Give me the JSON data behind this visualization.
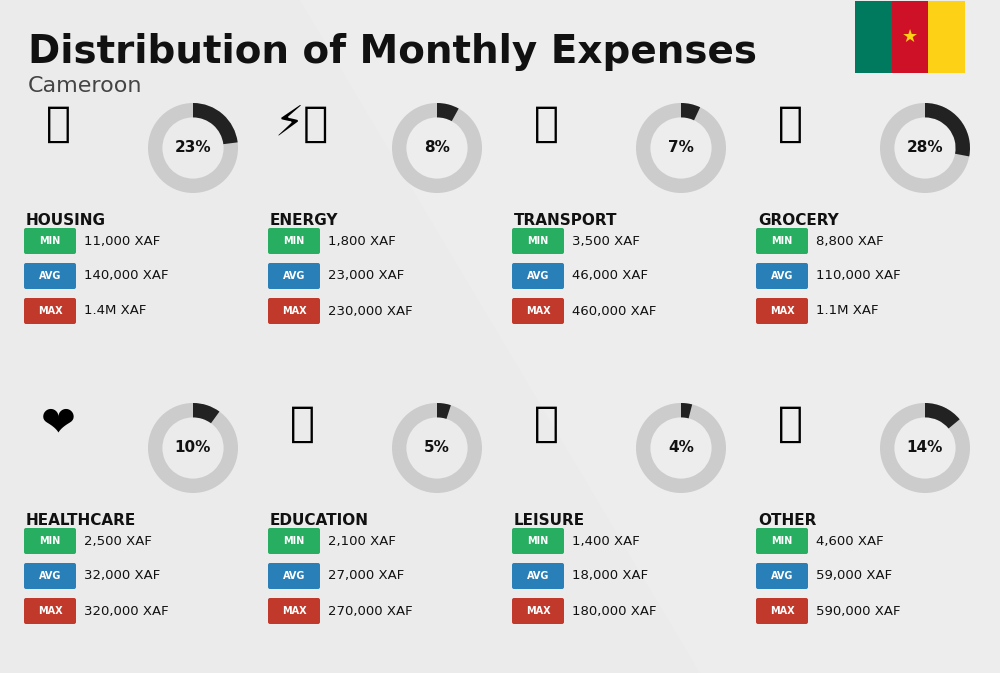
{
  "title": "Distribution of Monthly Expenses",
  "subtitle": "Cameroon",
  "background_color": "#ebebeb",
  "title_fontsize": 28,
  "subtitle_fontsize": 16,
  "categories": [
    {
      "name": "HOUSING",
      "percent": 23,
      "min": "11,000 XAF",
      "avg": "140,000 XAF",
      "max": "1.4M XAF",
      "row": 0,
      "col": 0
    },
    {
      "name": "ENERGY",
      "percent": 8,
      "min": "1,800 XAF",
      "avg": "23,000 XAF",
      "max": "230,000 XAF",
      "row": 0,
      "col": 1
    },
    {
      "name": "TRANSPORT",
      "percent": 7,
      "min": "3,500 XAF",
      "avg": "46,000 XAF",
      "max": "460,000 XAF",
      "row": 0,
      "col": 2
    },
    {
      "name": "GROCERY",
      "percent": 28,
      "min": "8,800 XAF",
      "avg": "110,000 XAF",
      "max": "1.1M XAF",
      "row": 0,
      "col": 3
    },
    {
      "name": "HEALTHCARE",
      "percent": 10,
      "min": "2,500 XAF",
      "avg": "32,000 XAF",
      "max": "320,000 XAF",
      "row": 1,
      "col": 0
    },
    {
      "name": "EDUCATION",
      "percent": 5,
      "min": "2,100 XAF",
      "avg": "27,000 XAF",
      "max": "270,000 XAF",
      "row": 1,
      "col": 1
    },
    {
      "name": "LEISURE",
      "percent": 4,
      "min": "1,400 XAF",
      "avg": "18,000 XAF",
      "max": "180,000 XAF",
      "row": 1,
      "col": 2
    },
    {
      "name": "OTHER",
      "percent": 14,
      "min": "4,600 XAF",
      "avg": "59,000 XAF",
      "max": "590,000 XAF",
      "row": 1,
      "col": 3
    }
  ],
  "min_color": "#27ae60",
  "avg_color": "#2980b9",
  "max_color": "#c0392b",
  "donut_dark": "#222222",
  "donut_light": "#cccccc",
  "cameroon_colors": [
    "#007a5e",
    "#ce1126",
    "#fcd116"
  ],
  "flag_star_color": "#fcd116",
  "icon_texts": [
    "🏢",
    "⚡🏠",
    "🚌",
    "🛒",
    "❤️",
    "🎓",
    "🛍️",
    "💰"
  ],
  "text_dark": "#111111",
  "text_mid": "#444444"
}
